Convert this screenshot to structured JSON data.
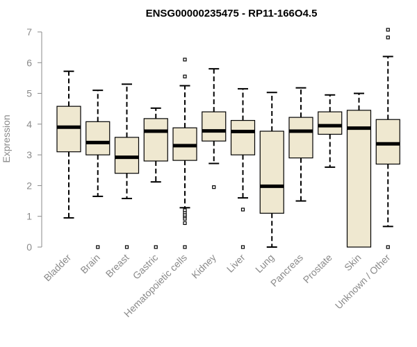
{
  "chart_data": {
    "type": "boxplot",
    "title": "ENSG00000235475 - RP11-166O4.5",
    "xlabel": "",
    "ylabel": "Expression",
    "ylim": [
      0,
      7
    ],
    "yticks": [
      "0",
      "1",
      "2",
      "3",
      "4",
      "5",
      "6",
      "7"
    ],
    "colors": {
      "box_fill": "#efe8d0",
      "stroke": "#000000",
      "median": "#000000",
      "axis": "#8a8a8a"
    },
    "categories": [
      "Bladder",
      "Brain",
      "Breast",
      "Gastric",
      "Hematopoietic cells",
      "Kidney",
      "Liver",
      "Lung",
      "Pancreas",
      "Prostate",
      "Skin",
      "Unknown / Other"
    ],
    "boxes": [
      {
        "name": "Bladder",
        "whisker_low": 0.95,
        "q1": 3.1,
        "median": 3.9,
        "q3": 4.58,
        "whisker_high": 5.72,
        "outliers": []
      },
      {
        "name": "Brain",
        "whisker_low": 1.65,
        "q1": 3.0,
        "median": 3.4,
        "q3": 4.08,
        "whisker_high": 5.1,
        "outliers": [
          0.0
        ]
      },
      {
        "name": "Breast",
        "whisker_low": 1.58,
        "q1": 2.4,
        "median": 2.92,
        "q3": 3.57,
        "whisker_high": 5.3,
        "outliers": [
          0.0
        ]
      },
      {
        "name": "Gastric",
        "whisker_low": 2.12,
        "q1": 2.8,
        "median": 3.77,
        "q3": 4.18,
        "whisker_high": 4.52,
        "outliers": [
          0.0
        ]
      },
      {
        "name": "Hematopoietic cells",
        "whisker_low": 1.28,
        "q1": 2.82,
        "median": 3.3,
        "q3": 3.88,
        "whisker_high": 5.25,
        "outliers": [
          0.0,
          0.78,
          0.92,
          1.0,
          1.05,
          1.13,
          1.2,
          5.55,
          6.1
        ]
      },
      {
        "name": "Kidney",
        "whisker_low": 2.72,
        "q1": 3.45,
        "median": 3.78,
        "q3": 4.4,
        "whisker_high": 5.8,
        "outliers": [
          1.95
        ]
      },
      {
        "name": "Liver",
        "whisker_low": 1.6,
        "q1": 3.0,
        "median": 3.76,
        "q3": 4.12,
        "whisker_high": 5.15,
        "outliers": [
          0.0,
          1.22
        ]
      },
      {
        "name": "Lung",
        "whisker_low": 0.0,
        "q1": 1.1,
        "median": 1.98,
        "q3": 3.77,
        "whisker_high": 5.03,
        "outliers": []
      },
      {
        "name": "Pancreas",
        "whisker_low": 1.5,
        "q1": 2.9,
        "median": 3.77,
        "q3": 4.22,
        "whisker_high": 5.18,
        "outliers": []
      },
      {
        "name": "Prostate",
        "whisker_low": 2.6,
        "q1": 3.67,
        "median": 3.95,
        "q3": 4.4,
        "whisker_high": 4.95,
        "outliers": []
      },
      {
        "name": "Skin",
        "whisker_low": 0.0,
        "q1": 0.0,
        "median": 3.87,
        "q3": 4.45,
        "whisker_high": 5.0,
        "outliers": []
      },
      {
        "name": "Unknown / Other",
        "whisker_low": 0.67,
        "q1": 2.7,
        "median": 3.36,
        "q3": 4.15,
        "whisker_high": 6.2,
        "outliers": [
          0.0,
          6.82,
          7.07
        ]
      }
    ]
  }
}
